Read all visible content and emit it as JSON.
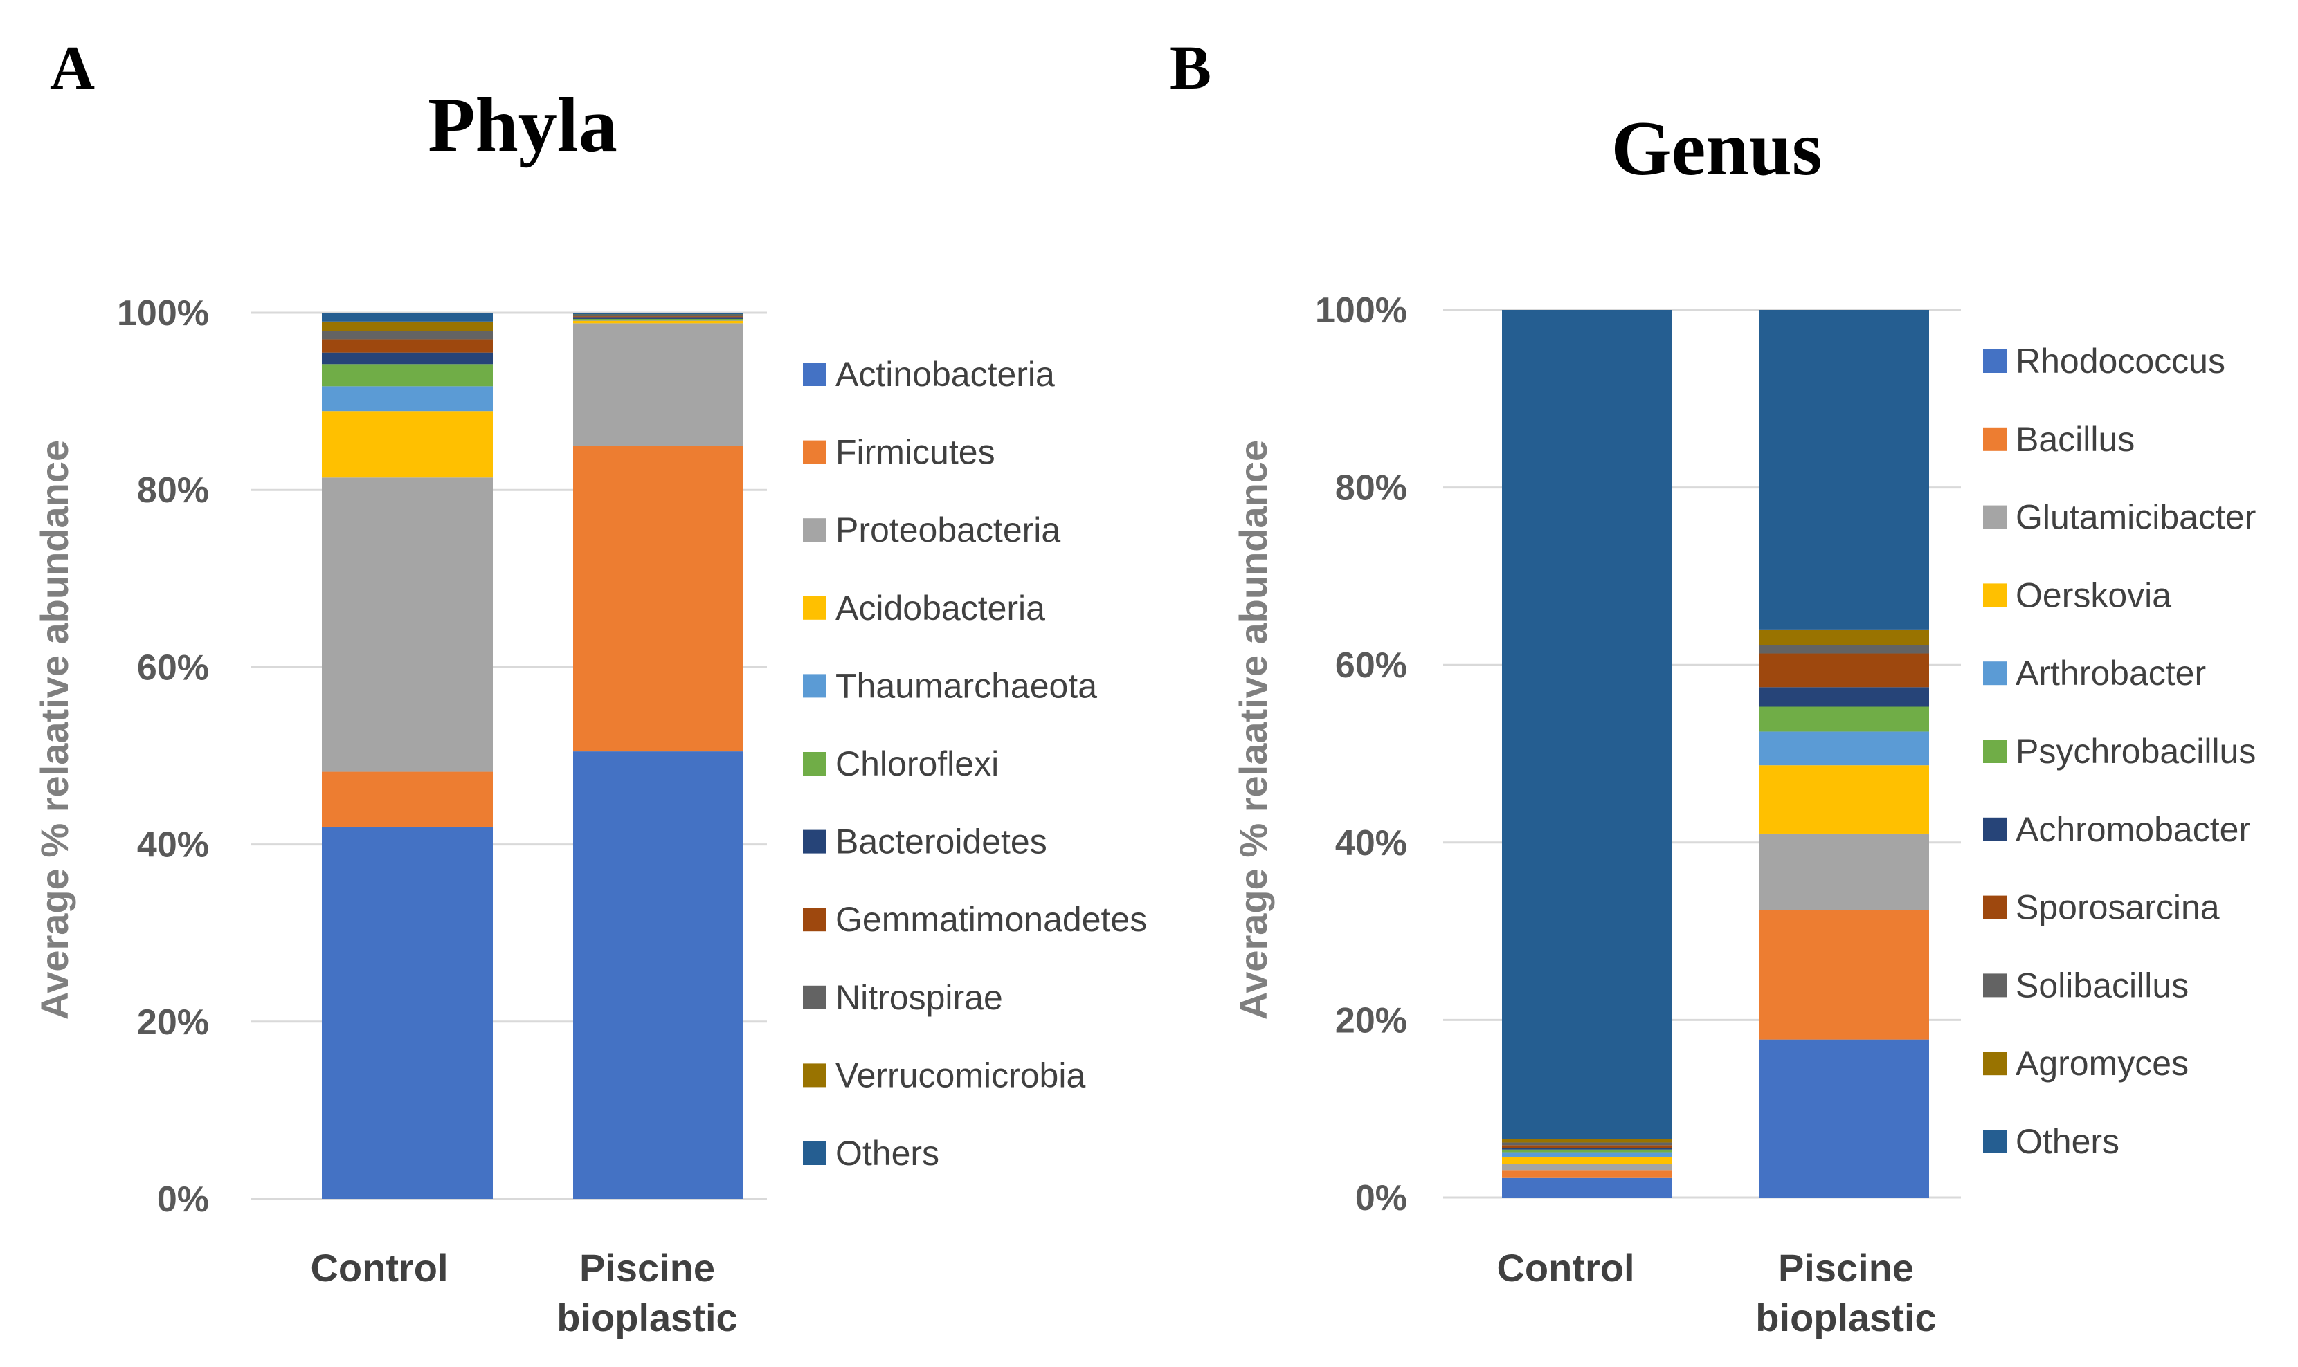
{
  "panels": [
    {
      "letter": "A",
      "chart_title": "Phyla"
    },
    {
      "letter": "B",
      "chart_title": "Genus"
    }
  ],
  "chart_data": [
    {
      "type": "bar",
      "stacked": true,
      "title": "Phyla",
      "xlabel": "",
      "ylabel": "Average % relaative abundance",
      "ylim": [
        0,
        100
      ],
      "yticks": [
        "0%",
        "20%",
        "40%",
        "60%",
        "80%",
        "100%"
      ],
      "categories": [
        {
          "lines": [
            "Control"
          ]
        },
        {
          "lines": [
            "Piscine",
            "bioplastic"
          ]
        }
      ],
      "legend_position": "right",
      "series": [
        {
          "name": "Actinobacteria",
          "color": "#4472C4",
          "values": [
            42.0,
            50.5
          ]
        },
        {
          "name": "Firmicutes",
          "color": "#ED7D31",
          "values": [
            6.2,
            34.5
          ]
        },
        {
          "name": "Proteobacteria",
          "color": "#A5A5A5",
          "values": [
            33.2,
            13.8
          ]
        },
        {
          "name": "Acidobacteria",
          "color": "#FFC000",
          "values": [
            7.5,
            0.3
          ]
        },
        {
          "name": "Thaumarchaeota",
          "color": "#5B9BD5",
          "values": [
            2.8,
            0.1
          ]
        },
        {
          "name": "Chloroflexi",
          "color": "#70AD47",
          "values": [
            2.5,
            0.1
          ]
        },
        {
          "name": "Bacteroidetes",
          "color": "#264478",
          "values": [
            1.3,
            0.2
          ]
        },
        {
          "name": "Gemmatimonadetes",
          "color": "#9E480E",
          "values": [
            1.5,
            0.1
          ]
        },
        {
          "name": "Nitrospirae",
          "color": "#636363",
          "values": [
            0.9,
            0.1
          ]
        },
        {
          "name": "Verrucomicrobia",
          "color": "#997300",
          "values": [
            1.1,
            0.1
          ]
        },
        {
          "name": "Others",
          "color": "#255E91",
          "values": [
            1.0,
            0.2
          ]
        }
      ]
    },
    {
      "type": "bar",
      "stacked": true,
      "title": "Genus",
      "xlabel": "",
      "ylabel": "Average % relaative abundance",
      "ylim": [
        0,
        100
      ],
      "yticks": [
        "0%",
        "20%",
        "40%",
        "60%",
        "80%",
        "100%"
      ],
      "categories": [
        {
          "lines": [
            "Control"
          ]
        },
        {
          "lines": [
            "Piscine",
            "bioplastic"
          ]
        }
      ],
      "legend_position": "right",
      "series": [
        {
          "name": "Rhodococcus",
          "color": "#4472C4",
          "values": [
            2.2,
            17.8
          ]
        },
        {
          "name": "Bacillus",
          "color": "#ED7D31",
          "values": [
            0.9,
            14.6
          ]
        },
        {
          "name": "Glutamicibacter",
          "color": "#A5A5A5",
          "values": [
            0.7,
            8.6
          ]
        },
        {
          "name": "Oerskovia",
          "color": "#FFC000",
          "values": [
            0.8,
            7.7
          ]
        },
        {
          "name": "Arthrobacter",
          "color": "#5B9BD5",
          "values": [
            0.5,
            3.8
          ]
        },
        {
          "name": "Psychrobacillus",
          "color": "#70AD47",
          "values": [
            0.3,
            2.8
          ]
        },
        {
          "name": "Achromobacter",
          "color": "#264478",
          "values": [
            0.2,
            2.2
          ]
        },
        {
          "name": "Sporosarcina",
          "color": "#9E480E",
          "values": [
            0.3,
            3.8
          ]
        },
        {
          "name": "Solibacillus",
          "color": "#636363",
          "values": [
            0.3,
            0.9
          ]
        },
        {
          "name": "Agromyces",
          "color": "#997300",
          "values": [
            0.4,
            1.8
          ]
        },
        {
          "name": "Others",
          "color": "#255E91",
          "values": [
            93.4,
            36.0
          ]
        }
      ]
    }
  ]
}
